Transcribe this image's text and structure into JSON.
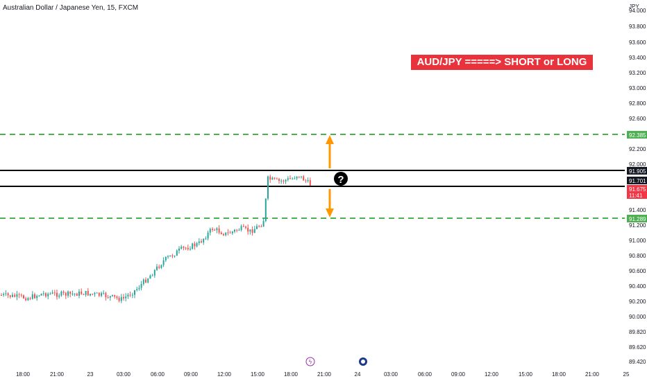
{
  "chart_title": "Australian Dollar / Japanese Yen, 15, FXCM",
  "annotation": "AUD/JPY =====> SHORT or LONG ?!??!",
  "price_axis": {
    "currency": "JPY",
    "ticks": [
      "94.000",
      "93.800",
      "93.600",
      "93.400",
      "93.200",
      "93.000",
      "92.800",
      "92.600",
      "92.400",
      "92.200",
      "92.000",
      "91.800",
      "91.600",
      "91.400",
      "91.200",
      "91.000",
      "90.800",
      "90.600",
      "90.400",
      "90.200",
      "90.000",
      "89.820",
      "89.620",
      "89.420"
    ]
  },
  "time_axis": {
    "ticks": [
      "18:00",
      "21:00",
      "23",
      "03:00",
      "06:00",
      "09:00",
      "12:00",
      "15:00",
      "18:00",
      "21:00",
      "24",
      "03:00",
      "06:00",
      "09:00",
      "12:00",
      "15:00",
      "18:00",
      "21:00",
      "25"
    ]
  },
  "price_tags": [
    {
      "name": "resistance-upper",
      "value": "92.385",
      "color": "#4caf50"
    },
    {
      "name": "zone-top",
      "value": "91.905",
      "color": "#131722"
    },
    {
      "name": "zone-bottom",
      "value": "91.701",
      "color": "#131722"
    },
    {
      "name": "last-price",
      "value": "91.675",
      "sub": "11:41",
      "color": "#f23645"
    },
    {
      "name": "support-lower",
      "value": "91.289",
      "color": "#4caf50"
    }
  ],
  "colors": {
    "up": "#26a69a",
    "down": "#ef5350",
    "arrow": "#ff9800",
    "dash": "#4caf50"
  },
  "question_mark": "?"
}
